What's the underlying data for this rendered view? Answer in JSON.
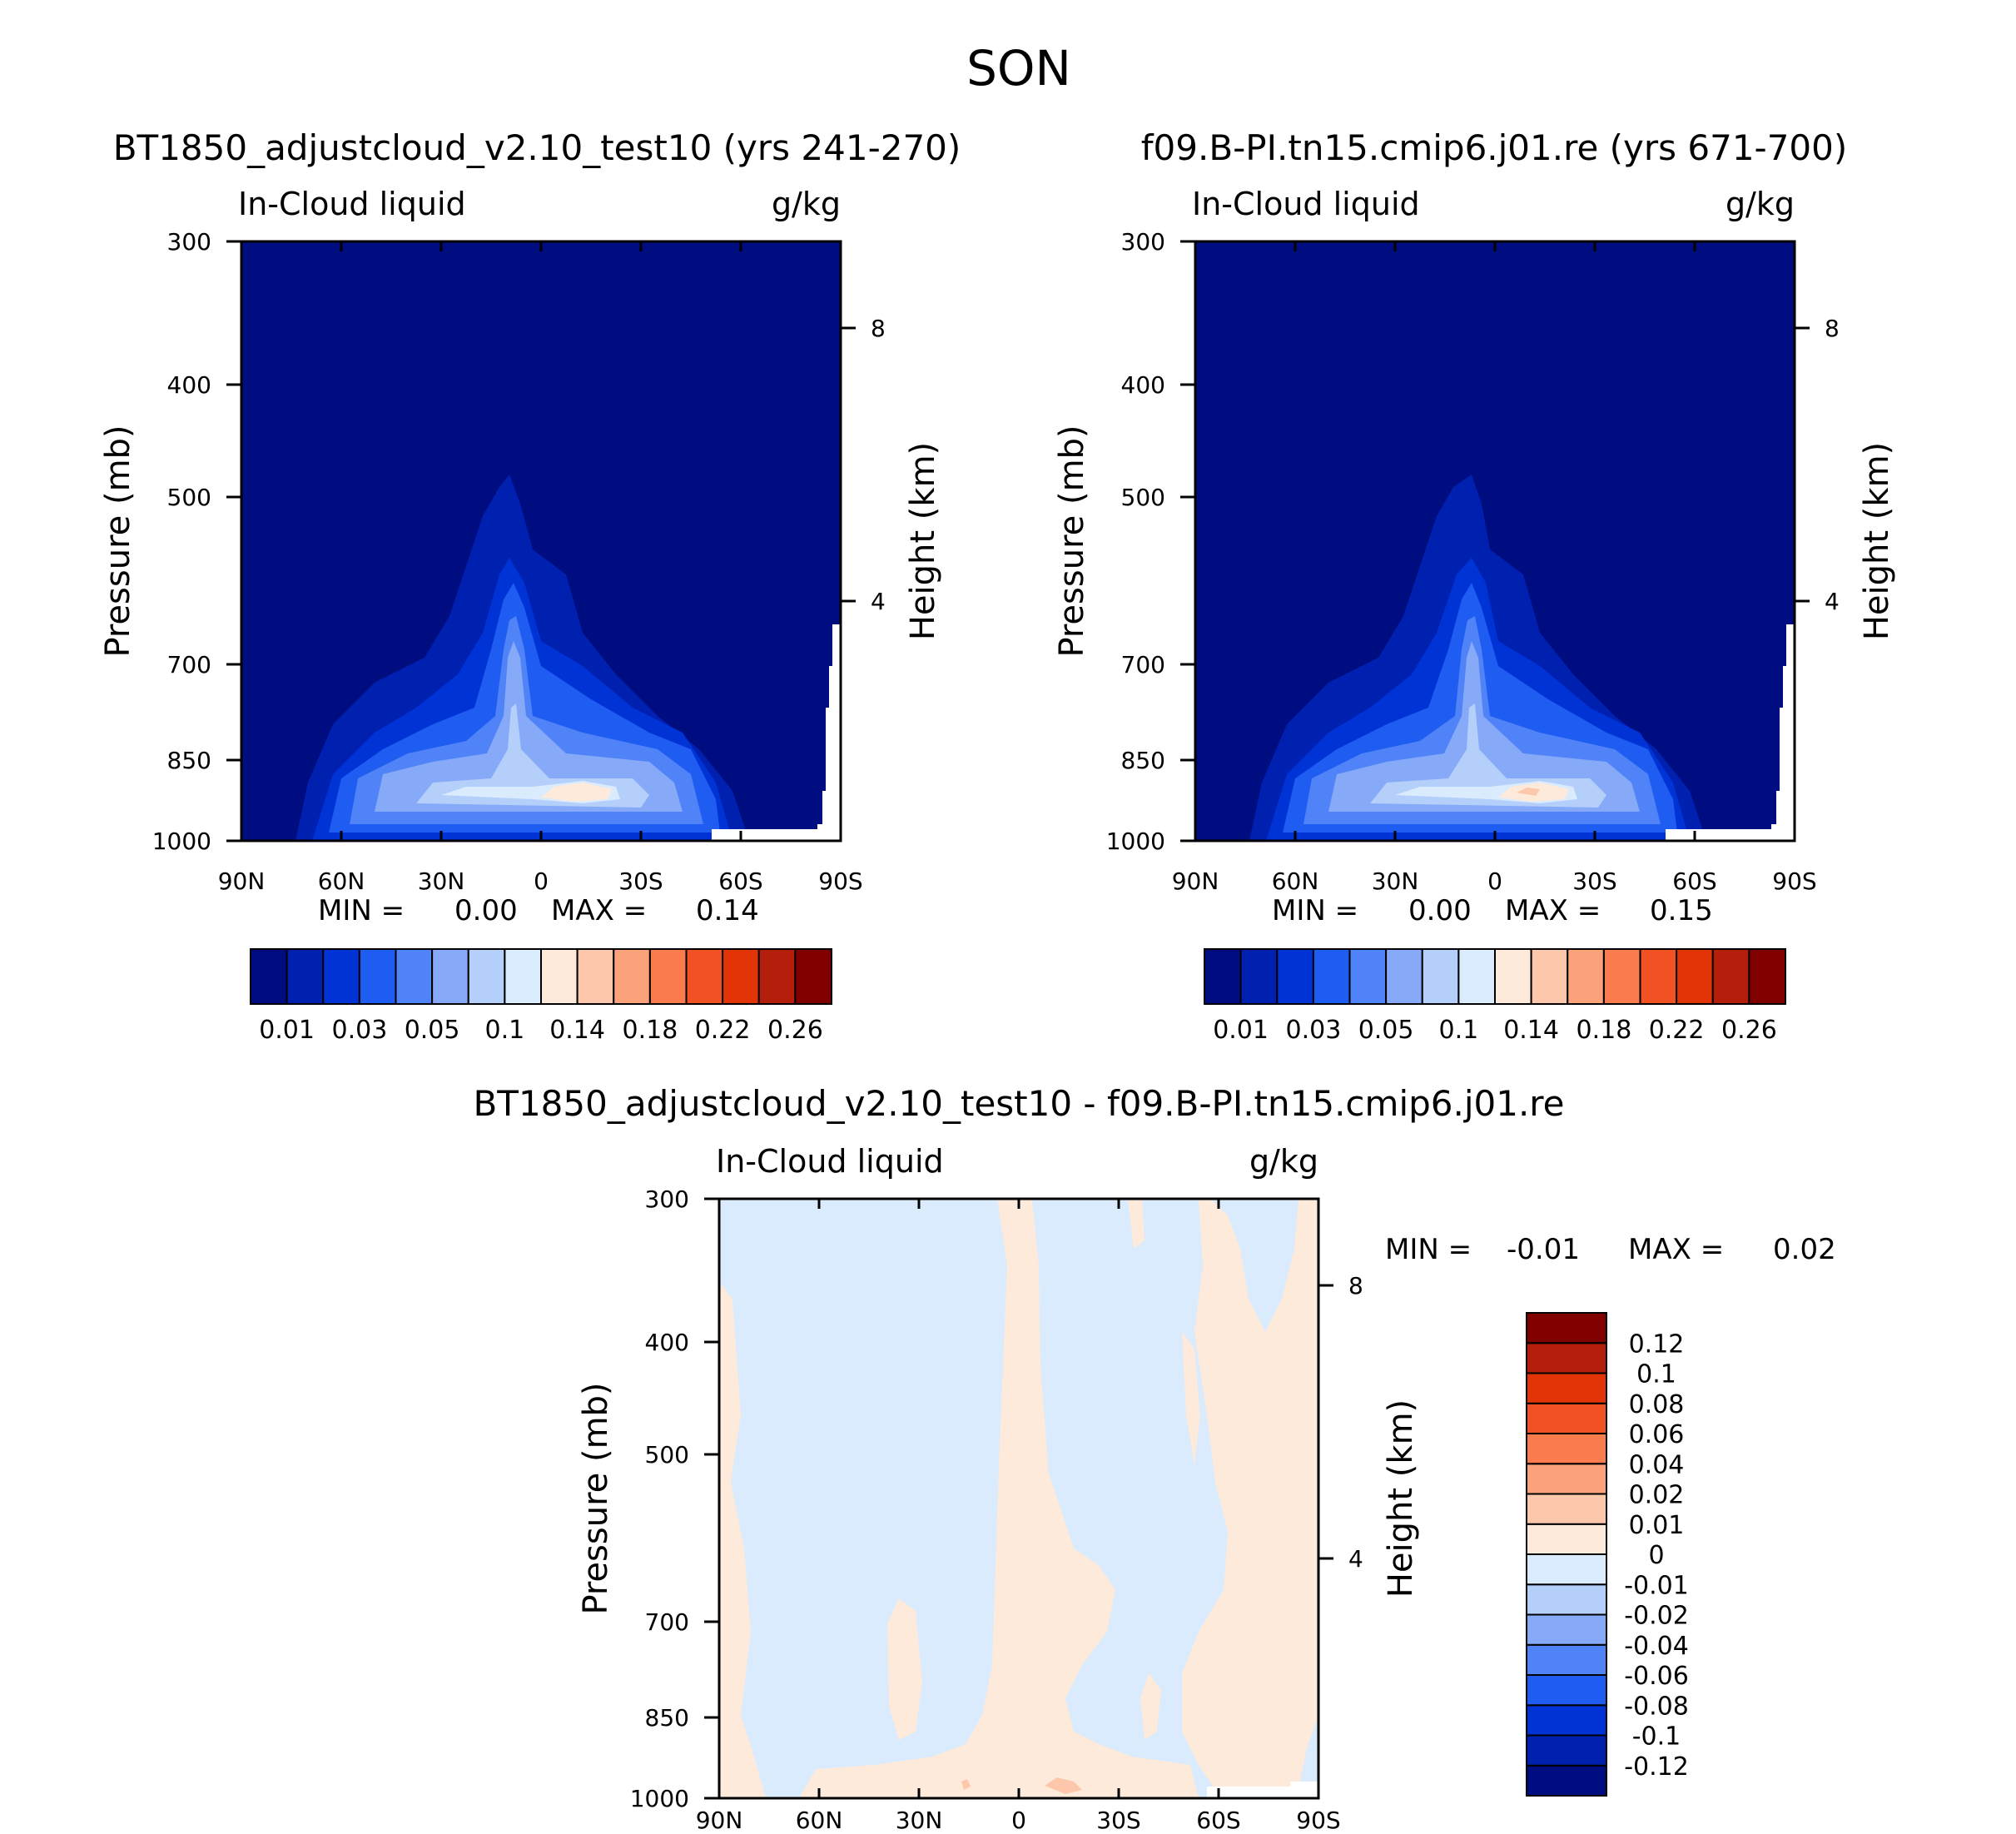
{
  "figure": {
    "season": "SON"
  },
  "chart_data": [
    {
      "type": "contour",
      "id": "panel-test",
      "title": "BT1850_adjustcloud_v2.10_test10 (yrs 241-270)",
      "variable": "In-Cloud liquid",
      "units": "g/kg",
      "ylabel": "Pressure (mb)",
      "y2label": "Height (km)",
      "xticks": [
        "90N",
        "60N",
        "30N",
        "0",
        "30S",
        "60S",
        "90S"
      ],
      "yticks": [
        300,
        400,
        500,
        700,
        850,
        1000
      ],
      "y2ticks": [
        8,
        4
      ],
      "ylim": [
        1000,
        300
      ],
      "min": "0.00",
      "max": "0.14",
      "stats_labels": {
        "min": "MIN =",
        "max": "MAX ="
      },
      "colorbar": {
        "colors": [
          "#000d80",
          "#0020b0",
          "#0033d6",
          "#1f5cf2",
          "#4f83f7",
          "#86a9f8",
          "#b5cffb",
          "#d9ebfd",
          "#feeadb",
          "#fcc7aa",
          "#fba27a",
          "#fa7b4e",
          "#f25223",
          "#e33408",
          "#b51e0a",
          "#800000"
        ],
        "labels": [
          "0.01",
          "0.03",
          "0.05",
          "0.1",
          "0.14",
          "0.18",
          "0.22",
          "0.26"
        ]
      }
    },
    {
      "type": "contour",
      "id": "panel-control",
      "title": "f09.B-PI.tn15.cmip6.j01.re (yrs 671-700)",
      "variable": "In-Cloud liquid",
      "units": "g/kg",
      "ylabel": "Pressure (mb)",
      "y2label": "Height (km)",
      "xticks": [
        "90N",
        "60N",
        "30N",
        "0",
        "30S",
        "60S",
        "90S"
      ],
      "yticks": [
        300,
        400,
        500,
        700,
        850,
        1000
      ],
      "y2ticks": [
        8,
        4
      ],
      "ylim": [
        1000,
        300
      ],
      "min": "0.00",
      "max": "0.15",
      "stats_labels": {
        "min": "MIN =",
        "max": "MAX ="
      },
      "colorbar": {
        "colors": [
          "#000d80",
          "#0020b0",
          "#0033d6",
          "#1f5cf2",
          "#4f83f7",
          "#86a9f8",
          "#b5cffb",
          "#d9ebfd",
          "#feeadb",
          "#fcc7aa",
          "#fba27a",
          "#fa7b4e",
          "#f25223",
          "#e33408",
          "#b51e0a",
          "#800000"
        ],
        "labels": [
          "0.01",
          "0.03",
          "0.05",
          "0.1",
          "0.14",
          "0.18",
          "0.22",
          "0.26"
        ]
      }
    },
    {
      "type": "contour",
      "id": "panel-diff",
      "title": "BT1850_adjustcloud_v2.10_test10 - f09.B-PI.tn15.cmip6.j01.re",
      "variable": "In-Cloud liquid",
      "units": "g/kg",
      "ylabel": "Pressure (mb)",
      "y2label": "Height (km)",
      "xticks": [
        "90N",
        "60N",
        "30N",
        "0",
        "30S",
        "60S",
        "90S"
      ],
      "yticks": [
        300,
        400,
        500,
        700,
        850,
        1000
      ],
      "y2ticks": [
        8,
        4
      ],
      "ylim": [
        1000,
        300
      ],
      "min": "-0.01",
      "max": "0.02",
      "stats_labels": {
        "min": "MIN =",
        "max": "MAX ="
      },
      "colorbar": {
        "colors": [
          "#000d80",
          "#0020b0",
          "#0033d6",
          "#1f5cf2",
          "#4f83f7",
          "#86a9f8",
          "#b5cffb",
          "#d9ebfd",
          "#feeadb",
          "#fcc7aa",
          "#fba27a",
          "#fa7b4e",
          "#f25223",
          "#e33408",
          "#b51e0a",
          "#800000"
        ],
        "labels": [
          "-0.12",
          "-0.1",
          "-0.08",
          "-0.06",
          "-0.04",
          "-0.02",
          "-0.01",
          "0",
          "0.01",
          "0.02",
          "0.04",
          "0.06",
          "0.08",
          "0.1",
          "0.12"
        ]
      }
    }
  ]
}
